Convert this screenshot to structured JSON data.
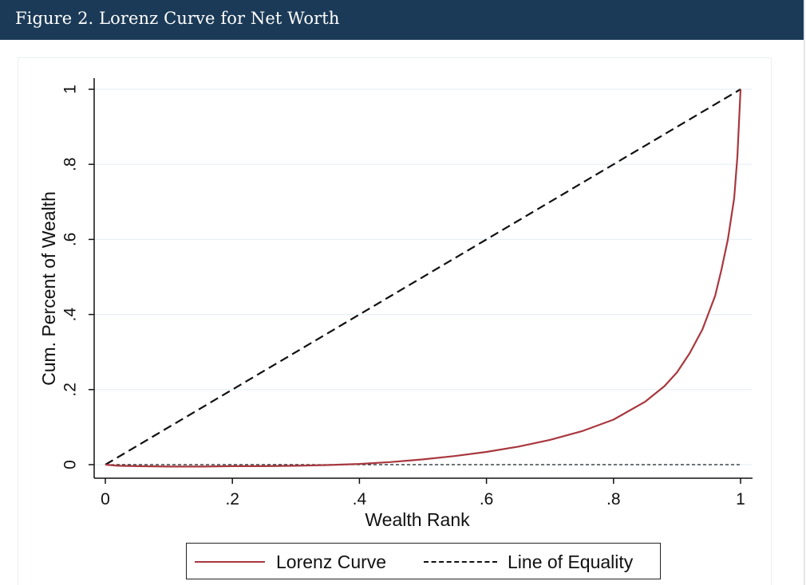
{
  "figure": {
    "title": "Figure 2. Lorenz Curve for Net Worth"
  },
  "colors": {
    "header_bg": "#1b3a57",
    "lorenz": "#a8383f",
    "equality": "#111111",
    "gridline": "#e6eff4"
  },
  "chart_data": {
    "type": "line",
    "xlabel": "Wealth Rank",
    "ylabel": "Cum. Percent of Wealth",
    "xlim": [
      0,
      1
    ],
    "ylim": [
      0,
      1
    ],
    "x_ticks": [
      "0",
      ".2",
      ".4",
      ".6",
      ".8",
      "1"
    ],
    "y_ticks": [
      "0",
      ".2",
      ".4",
      ".6",
      ".8",
      "1"
    ],
    "grid": true,
    "legend_position": "bottom",
    "series": [
      {
        "name": "Lorenz Curve",
        "style": "solid",
        "x": [
          0,
          0.02,
          0.05,
          0.1,
          0.15,
          0.2,
          0.25,
          0.3,
          0.35,
          0.4,
          0.45,
          0.5,
          0.55,
          0.6,
          0.65,
          0.7,
          0.75,
          0.8,
          0.85,
          0.88,
          0.9,
          0.92,
          0.94,
          0.96,
          0.97,
          0.98,
          0.99,
          0.995,
          1.0
        ],
        "y": [
          0,
          -0.003,
          -0.004,
          -0.005,
          -0.005,
          -0.004,
          -0.004,
          -0.003,
          -0.001,
          0.002,
          0.007,
          0.014,
          0.023,
          0.034,
          0.048,
          0.066,
          0.089,
          0.12,
          0.168,
          0.209,
          0.246,
          0.297,
          0.36,
          0.45,
          0.52,
          0.6,
          0.71,
          0.82,
          1.0
        ]
      },
      {
        "name": "Line of Equality",
        "style": "dashed",
        "x": [
          0,
          1
        ],
        "y": [
          0,
          1
        ]
      },
      {
        "style": "dotted",
        "x": [
          0,
          1
        ],
        "y": [
          0,
          0
        ]
      }
    ]
  }
}
